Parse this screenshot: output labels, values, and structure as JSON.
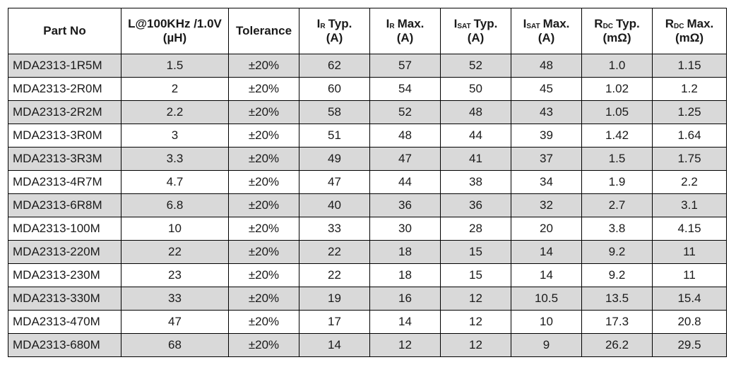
{
  "headers": {
    "part_no": "Part No",
    "inductance": {
      "line1": "L@100KHz /1.0V",
      "line2": "(µH)"
    },
    "tolerance": "Tolerance",
    "ir_typ": {
      "sym": "I",
      "sub": "R",
      "label": "Typ.",
      "unit": "(A)"
    },
    "ir_max": {
      "sym": "I",
      "sub": "R",
      "label": "Max.",
      "unit": "(A)"
    },
    "isat_typ": {
      "sym": "I",
      "sub": "SAT",
      "label": "Typ.",
      "unit": "(A)"
    },
    "isat_max": {
      "sym": "I",
      "sub": "SAT",
      "label": "Max.",
      "unit": "(A)"
    },
    "rdc_typ": {
      "sym": "R",
      "sub": "DC",
      "label": "Typ.",
      "unit": "(mΩ)"
    },
    "rdc_max": {
      "sym": "R",
      "sub": "DC",
      "label": "Max.",
      "unit": "(mΩ)"
    }
  },
  "rows": [
    [
      "MDA2313-1R5M",
      "1.5",
      "±20%",
      "62",
      "57",
      "52",
      "48",
      "1.0",
      "1.15"
    ],
    [
      "MDA2313-2R0M",
      "2",
      "±20%",
      "60",
      "54",
      "50",
      "45",
      "1.02",
      "1.2"
    ],
    [
      "MDA2313-2R2M",
      "2.2",
      "±20%",
      "58",
      "52",
      "48",
      "43",
      "1.05",
      "1.25"
    ],
    [
      "MDA2313-3R0M",
      "3",
      "±20%",
      "51",
      "48",
      "44",
      "39",
      "1.42",
      "1.64"
    ],
    [
      "MDA2313-3R3M",
      "3.3",
      "±20%",
      "49",
      "47",
      "41",
      "37",
      "1.5",
      "1.75"
    ],
    [
      "MDA2313-4R7M",
      "4.7",
      "±20%",
      "47",
      "44",
      "38",
      "34",
      "1.9",
      "2.2"
    ],
    [
      "MDA2313-6R8M",
      "6.8",
      "±20%",
      "40",
      "36",
      "36",
      "32",
      "2.7",
      "3.1"
    ],
    [
      "MDA2313-100M",
      "10",
      "±20%",
      "33",
      "30",
      "28",
      "20",
      "3.8",
      "4.15"
    ],
    [
      "MDA2313-220M",
      "22",
      "±20%",
      "22",
      "18",
      "15",
      "14",
      "9.2",
      "11"
    ],
    [
      "MDA2313-230M",
      "23",
      "±20%",
      "22",
      "18",
      "15",
      "14",
      "9.2",
      "11"
    ],
    [
      "MDA2313-330M",
      "33",
      "±20%",
      "19",
      "16",
      "12",
      "10.5",
      "13.5",
      "15.4"
    ],
    [
      "MDA2313-470M",
      "47",
      "±20%",
      "17",
      "14",
      "12",
      "10",
      "17.3",
      "20.8"
    ],
    [
      "MDA2313-680M",
      "68",
      "±20%",
      "14",
      "12",
      "12",
      "9",
      "26.2",
      "29.5"
    ]
  ]
}
